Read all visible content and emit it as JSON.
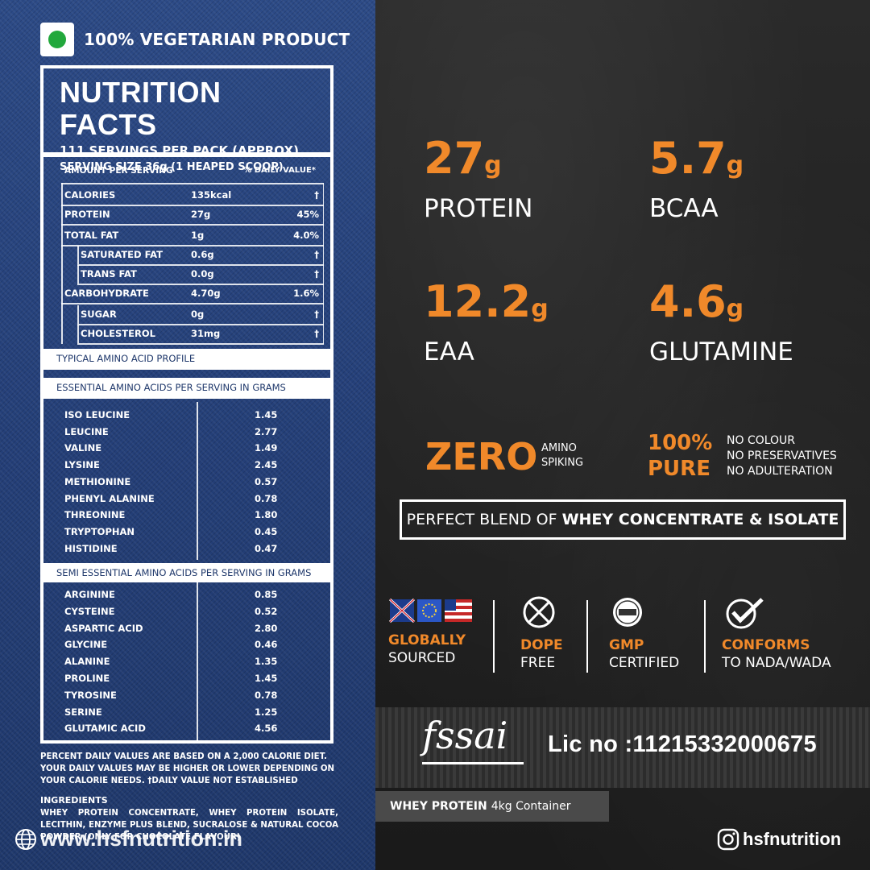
{
  "veg_label": "100% VEGETARIAN PRODUCT",
  "nutrition": {
    "title": "NUTRITION FACTS",
    "servings": "111 SERVINGS PER PACK (APPROX)",
    "serving_size": "SERVING SIZE 36g  (1 HEAPED SCOOP)",
    "col_amount": "AMOUNT PER SERVING",
    "col_dv": "% DAILY VALUE*",
    "rows": [
      {
        "label": "CALORIES",
        "value": "135kcal",
        "dv": "†"
      },
      {
        "label": "PROTEIN",
        "value": "27g",
        "dv": "45%"
      },
      {
        "label": "TOTAL FAT",
        "value": "1g",
        "dv": "4.0%"
      },
      {
        "label": "SATURATED FAT",
        "value": "0.6g",
        "dv": "†"
      },
      {
        "label": "TRANS FAT",
        "value": "0.0g",
        "dv": "†"
      },
      {
        "label": "CARBOHYDRATE",
        "value": "4.70g",
        "dv": "1.6%"
      },
      {
        "label": "SUGAR",
        "value": "0g",
        "dv": "†"
      },
      {
        "label": "CHOLESTEROL",
        "value": "31mg",
        "dv": "†"
      }
    ]
  },
  "amino": {
    "profile_title": "TYPICAL AMINO ACID PROFILE",
    "essential_title": "ESSENTIAL AMINO ACIDS PER SERVING IN GRAMS",
    "essential": [
      {
        "label": "ISO LEUCINE",
        "value": "1.45"
      },
      {
        "label": "LEUCINE",
        "value": "2.77"
      },
      {
        "label": "VALINE",
        "value": "1.49"
      },
      {
        "label": "LYSINE",
        "value": "2.45"
      },
      {
        "label": "METHIONINE",
        "value": "0.57"
      },
      {
        "label": "PHENYL ALANINE",
        "value": "0.78"
      },
      {
        "label": "THREONINE",
        "value": "1.80"
      },
      {
        "label": "TRYPTOPHAN",
        "value": "0.45"
      },
      {
        "label": "HISTIDINE",
        "value": "0.47"
      }
    ],
    "semi_title": "SEMI ESSENTIAL AMINO ACIDS PER SERVING IN GRAMS",
    "semi": [
      {
        "label": "ARGININE",
        "value": "0.85"
      },
      {
        "label": "CYSTEINE",
        "value": "0.52"
      },
      {
        "label": "ASPARTIC ACID",
        "value": "2.80"
      },
      {
        "label": "GLYCINE",
        "value": "0.46"
      },
      {
        "label": "ALANINE",
        "value": "1.35"
      },
      {
        "label": "PROLINE",
        "value": "1.45"
      },
      {
        "label": "TYROSINE",
        "value": "0.78"
      },
      {
        "label": "SERINE",
        "value": "1.25"
      },
      {
        "label": "GLUTAMIC ACID",
        "value": "4.56"
      }
    ]
  },
  "footnote": "PERCENT DAILY VALUES ARE BASED ON A 2,000 CALORIE DIET. YOUR DAILY VALUES MAY BE HIGHER OR LOWER DEPENDING ON YOUR CALORIE NEEDS. †DAILY VALUE NOT ESTABLISHED",
  "ingredients_title": "INGREDIENTS",
  "ingredients": "WHEY PROTEIN CONCENTRATE, WHEY PROTEIN ISOLATE, LECITHIN, ENZYME PLUS BLEND, SUCRALOSE & NATURAL COCOA POWDER (ONLY FOR CHOCOLATE FLAVOUR)",
  "website": "www.hsfnutrition.in",
  "stats": [
    {
      "num": "27",
      "unit": "g",
      "label": "PROTEIN"
    },
    {
      "num": "5.7",
      "unit": "g",
      "label": "BCAA"
    },
    {
      "num": "12.2",
      "unit": "g",
      "label": "EAA"
    },
    {
      "num": "4.6",
      "unit": "g",
      "label": "GLUTAMINE"
    }
  ],
  "zero": {
    "big": "ZERO",
    "line1": "AMINO",
    "line2": "SPIKING"
  },
  "pure": {
    "line1": "100%",
    "line2": "PURE",
    "items": [
      "NO COLOUR",
      "NO PRESERVATIVES",
      "NO ADULTERATION"
    ]
  },
  "blend": {
    "prefix": "PERFECT BLEND OF",
    "bold": "WHEY CONCENTRATE & ISOLATE"
  },
  "badges": [
    {
      "icon": "flags-icon",
      "t1": "GLOBALLY",
      "t2": "SOURCED"
    },
    {
      "icon": "no-dope-icon",
      "t1": "DOPE",
      "t2": "FREE"
    },
    {
      "icon": "gmp-seal-icon",
      "t1": "GMP",
      "t2": "CERTIFIED"
    },
    {
      "icon": "checkmark-icon",
      "t1": "CONFORMS",
      "t2": "TO NADA/WADA"
    }
  ],
  "fssai": {
    "logo": "fssai",
    "license": "Lic no :11215332000675"
  },
  "container": {
    "bold": "WHEY PROTEIN",
    "rest": "4kg Container"
  },
  "instagram": "hsfnutrition",
  "colors": {
    "accent_orange": "#f0892a",
    "denim_blue": "#243f78",
    "veg_green": "#22a83c"
  }
}
